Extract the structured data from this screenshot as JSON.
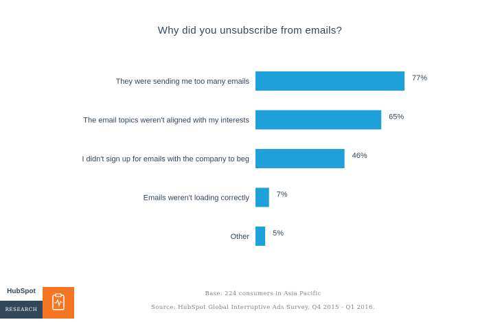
{
  "chart_data": {
    "type": "bar",
    "orientation": "horizontal",
    "title": "Why did you unsubscribe from emails?",
    "categories": [
      "They were sending me too many emails",
      "The email topics weren't aligned with my interests",
      "I didn't sign up for emails with the company to beg",
      "Emails weren't loading correctly",
      "Other"
    ],
    "values": [
      77,
      65,
      46,
      7,
      5
    ],
    "value_labels": [
      "77%",
      "65%",
      "46%",
      "7%",
      "5%"
    ],
    "xlim": [
      0,
      77
    ],
    "bar_color": "#1ea0da",
    "grid": false
  },
  "footnotes": {
    "base": "Base: 224 consumers in Asia Pacific",
    "source": "Source: HubSpot Global Interruptive Ads Survey, Q4 2015 - Q1 2016."
  },
  "branding": {
    "logo_text": "HubSpot",
    "label": "RESEARCH",
    "badge_color": "#f47622",
    "icon": "clipboard-pulse-icon"
  }
}
